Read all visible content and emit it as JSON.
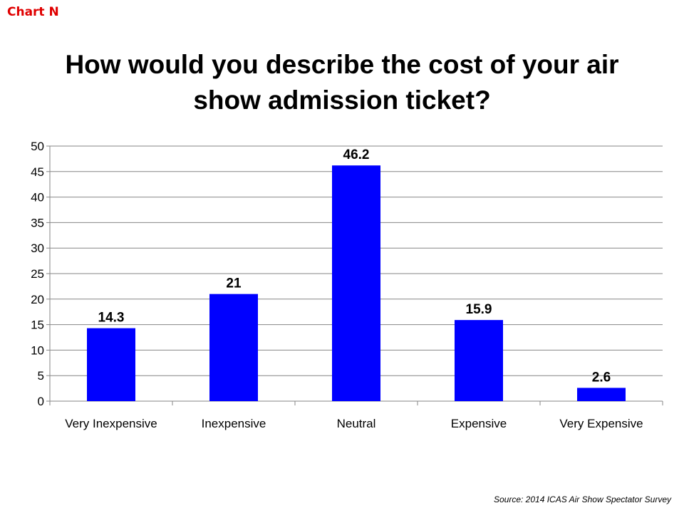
{
  "chart_label": "Chart N",
  "source": "Source: 2014  ICAS Air Show Spectator Survey",
  "colors": {
    "bar": "#0000ff",
    "chart_label": "#e00000",
    "grid": "#868686"
  },
  "chart_data": {
    "type": "bar",
    "title": "How would you describe the cost of your air show admission ticket?",
    "title_lines": [
      "How would you describe the cost of your air",
      "show admission ticket?"
    ],
    "categories": [
      "Very Inexpensive",
      "Inexpensive",
      "Neutral",
      "Expensive",
      "Very Expensive"
    ],
    "values": [
      14.3,
      21,
      46.2,
      15.9,
      2.6
    ],
    "data_labels": [
      "14.3",
      "21",
      "46.2",
      "15.9",
      "2.6"
    ],
    "xlabel": "",
    "ylabel": "",
    "ylim": [
      0,
      50
    ],
    "yticks": [
      0,
      5,
      10,
      15,
      20,
      25,
      30,
      35,
      40,
      45,
      50
    ],
    "grid": true,
    "legend": "none"
  }
}
